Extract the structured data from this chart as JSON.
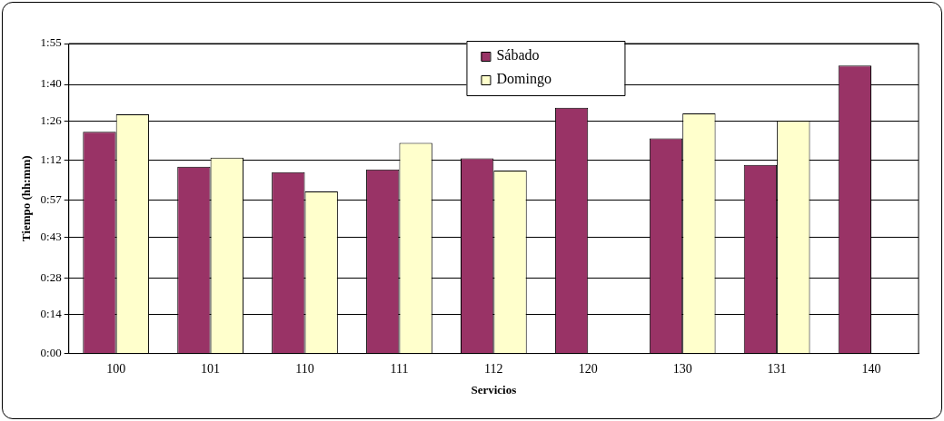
{
  "chart_data": {
    "type": "bar",
    "xlabel": "Servicios",
    "ylabel": "Tiempo (hh:mm)",
    "categories": [
      "100",
      "101",
      "110",
      "111",
      "112",
      "120",
      "130",
      "131",
      "140"
    ],
    "series": [
      {
        "name": "Sábado",
        "color": "#993366",
        "values": [
          82.4,
          69.4,
          67.4,
          68.4,
          72.5,
          91.3,
          80.0,
          70.1,
          107.0
        ]
      },
      {
        "name": "Domingo",
        "color": "#ffffcc",
        "values": [
          88.9,
          72.8,
          60.2,
          78.3,
          68.0,
          null,
          89.2,
          86.5,
          null
        ]
      }
    ],
    "ylim": [
      0,
      115.2
    ],
    "yticks": [
      {
        "value": 0,
        "label": "0:00"
      },
      {
        "value": 14.4,
        "label": "0:14"
      },
      {
        "value": 28,
        "label": "0:28"
      },
      {
        "value": 43.2,
        "label": "0:43"
      },
      {
        "value": 57,
        "label": "0:57"
      },
      {
        "value": 72,
        "label": "1:12"
      },
      {
        "value": 86.4,
        "label": "1:26"
      },
      {
        "value": 100,
        "label": "1:40"
      },
      {
        "value": 115.2,
        "label": "1:55"
      }
    ],
    "grid": "y",
    "legend": "top"
  }
}
